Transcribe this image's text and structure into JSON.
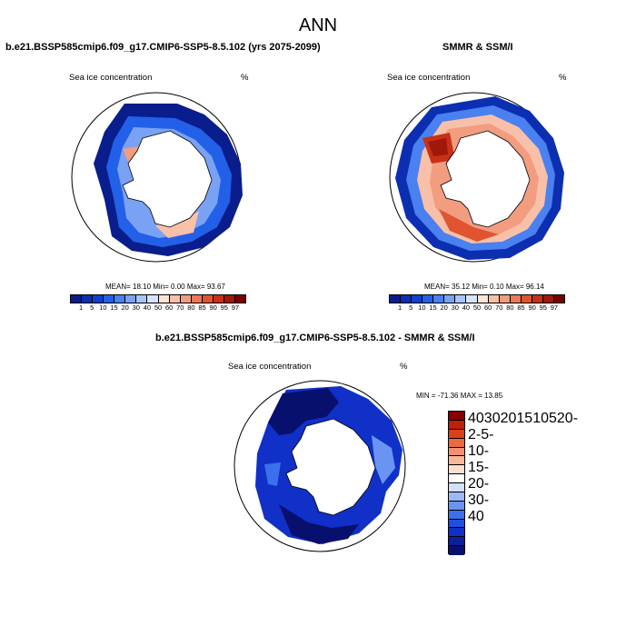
{
  "figure": {
    "title": "ANN"
  },
  "panels": [
    {
      "title": "b.e21.BSSP585cmip6.f09_g17.CMIP6-SSP5-8.5.102 (yrs 2075-2099)",
      "left_label": "Sea ice concentration",
      "right_label": "%",
      "stats": "MEAN=  18.10  Min=    0.00  Max=   93.67",
      "colorbar_labels": [
        "1",
        "5",
        "10",
        "15",
        "20",
        "30",
        "40",
        "50",
        "60",
        "70",
        "80",
        "85",
        "90",
        "95",
        "97"
      ]
    },
    {
      "title": "SMMR & SSM/I",
      "left_label": "Sea ice concentration",
      "right_label": "%",
      "stats": "MEAN=  35.12  Min=    0.10  Max=   96.14",
      "colorbar_labels": [
        "1",
        "5",
        "10",
        "15",
        "20",
        "30",
        "40",
        "50",
        "60",
        "70",
        "80",
        "85",
        "90",
        "95",
        "97"
      ]
    },
    {
      "title": "b.e21.BSSP585cmip6.f09_g17.CMIP6-SSP5-8.5.102 - SMMR & SSM/I",
      "left_label": "Sea ice concentration",
      "right_label": "%",
      "stats": "MIN = -71.36 MAX =  13.85",
      "colorbar_labels": [
        "40",
        "30",
        "20",
        "15",
        "10",
        "5",
        "2",
        "0",
        "-2",
        "-5",
        "-10",
        "-15",
        "-20",
        "-30",
        "-40"
      ]
    }
  ],
  "colors": {
    "conc_scale": [
      "#0a1d8c",
      "#0b2fb0",
      "#1040d0",
      "#2360e8",
      "#4a80f0",
      "#7aa2f4",
      "#a8c4f8",
      "#d6e4fb",
      "#fde4d6",
      "#f8c0a8",
      "#f29c80",
      "#ec7858",
      "#e05430",
      "#c83018",
      "#a01808",
      "#7a0000"
    ],
    "diff_scale": [
      "#08106e",
      "#0b1fa0",
      "#1030c8",
      "#2050e0",
      "#3a70ec",
      "#6a94f2",
      "#9cb8f6",
      "#d2e0fa",
      "#ffffff",
      "#fde0d0",
      "#f8b898",
      "#f29070",
      "#ec6840",
      "#dc4018",
      "#c02008",
      "#8a0000"
    ],
    "continent": "#ffffff",
    "outline": "#000000"
  }
}
